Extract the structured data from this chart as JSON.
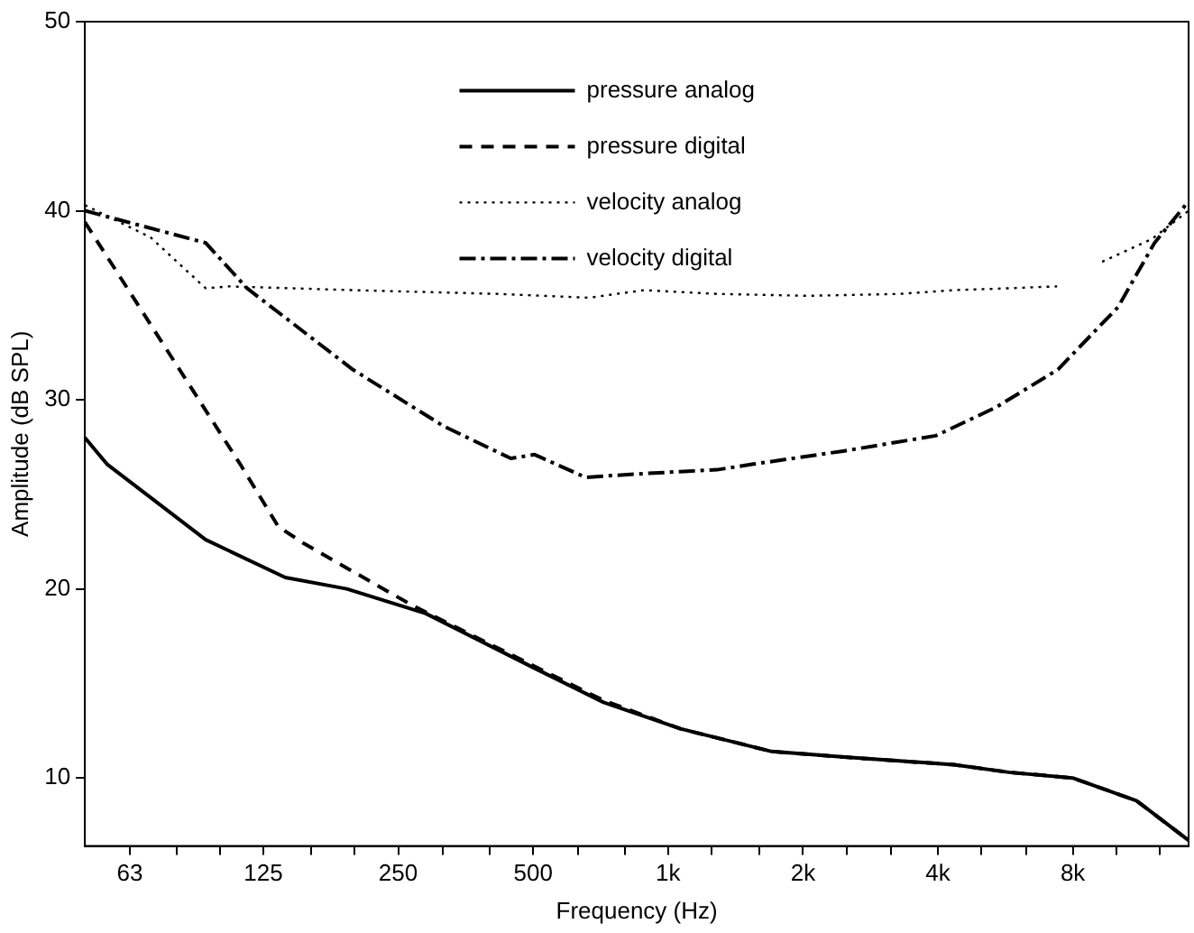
{
  "chart_data": {
    "type": "line",
    "xlabel": "Frequency (Hz)",
    "ylabel": "Amplitude (dB SPL)",
    "log": "x",
    "xlim": [
      50,
      14500
    ],
    "ylim": [
      6.4,
      50
    ],
    "xticks": [
      {
        "value": 63,
        "label": "63"
      },
      {
        "value": 80,
        "label": null
      },
      {
        "value": 100,
        "label": null
      },
      {
        "value": 125,
        "label": "125"
      },
      {
        "value": 160,
        "label": null
      },
      {
        "value": 200,
        "label": null
      },
      {
        "value": 250,
        "label": "250"
      },
      {
        "value": 315,
        "label": null
      },
      {
        "value": 400,
        "label": null
      },
      {
        "value": 500,
        "label": "500"
      },
      {
        "value": 630,
        "label": null
      },
      {
        "value": 800,
        "label": null
      },
      {
        "value": 1000,
        "label": "1k"
      },
      {
        "value": 1250,
        "label": null
      },
      {
        "value": 1600,
        "label": null
      },
      {
        "value": 2000,
        "label": "2k"
      },
      {
        "value": 2500,
        "label": null
      },
      {
        "value": 3150,
        "label": null
      },
      {
        "value": 4000,
        "label": "4k"
      },
      {
        "value": 5000,
        "label": null
      },
      {
        "value": 6300,
        "label": null
      },
      {
        "value": 8000,
        "label": "8k"
      },
      {
        "value": 10000,
        "label": null
      },
      {
        "value": 12500,
        "label": null
      }
    ],
    "yticks": [
      10,
      20,
      30,
      40,
      50
    ],
    "grid": false,
    "legend": "top",
    "marker": "none",
    "series": [
      {
        "name": "pressure analog",
        "color": "#000000",
        "line_style": "solid",
        "x": [
          50,
          56,
          93,
          140,
          192,
          288,
          504,
          718,
          1066,
          1703,
          2477,
          3282,
          4347,
          5757,
          7989,
          11090,
          14500
        ],
        "values": [
          28.0,
          26.6,
          22.6,
          20.6,
          20.0,
          18.7,
          15.8,
          14.0,
          12.6,
          11.4,
          11.1,
          10.9,
          10.7,
          10.3,
          10.0,
          8.8,
          6.7
        ]
      },
      {
        "name": "pressure digital",
        "color": "#000000",
        "line_style": "dashed",
        "x": [
          50,
          111,
          135,
          154,
          270,
          504,
          718,
          1066,
          1703,
          2477,
          3282,
          4347,
          5757,
          7989,
          11090,
          14500
        ],
        "values": [
          39.4,
          26.6,
          23.3,
          22.4,
          19.1,
          15.9,
          14.1,
          12.6,
          11.4,
          11.1,
          10.9,
          10.7,
          10.3,
          10.0,
          8.8,
          6.7
        ]
      },
      {
        "name": "velocity analog",
        "color": "#000000",
        "line_style": "dotted",
        "x": [
          50,
          58.5,
          70,
          93,
          105,
          198,
          418,
          667,
          884,
          1286,
          2054,
          3282,
          4347,
          5757,
          7380,
          8000,
          9300,
          12000,
          14500
        ],
        "values": [
          40.3,
          39.5,
          38.6,
          35.9,
          36.0,
          35.8,
          35.6,
          35.4,
          35.8,
          35.6,
          35.5,
          35.6,
          35.8,
          35.9,
          36.0,
          null,
          37.3,
          38.5,
          40.0
        ]
      },
      {
        "name": "velocity digital",
        "color": "#000000",
        "line_style": "dashdot",
        "x": [
          50,
          93,
          115,
          198,
          316,
          446,
          504,
          654,
          884,
          1286,
          1551,
          2477,
          3957,
          5390,
          7410,
          10090,
          12170,
          14500
        ],
        "values": [
          40.0,
          38.3,
          35.9,
          31.6,
          28.6,
          26.9,
          27.1,
          25.9,
          26.1,
          26.3,
          26.6,
          27.3,
          28.1,
          29.6,
          31.6,
          34.9,
          38.3,
          40.5
        ]
      }
    ]
  }
}
